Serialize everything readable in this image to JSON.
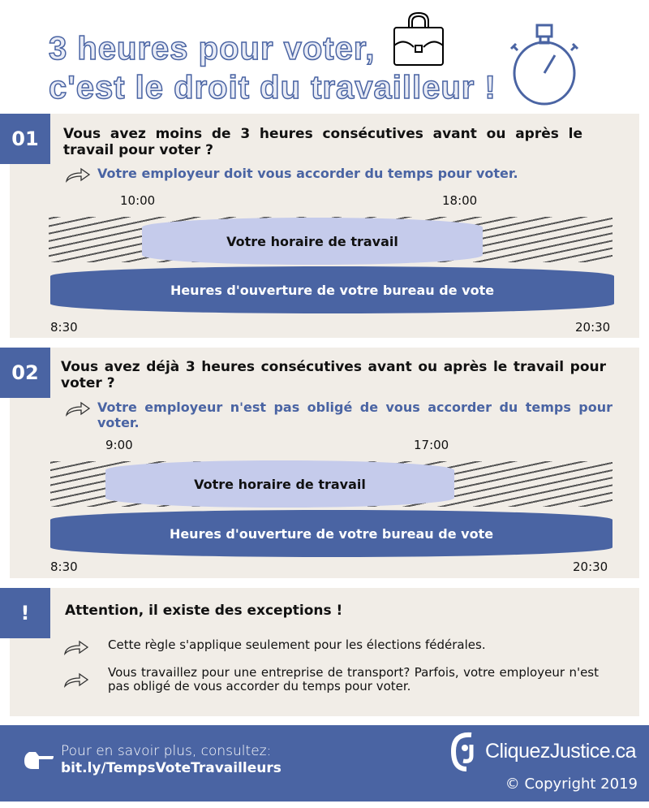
{
  "title": {
    "line1": "3 heures pour voter,",
    "line2": "c'est le droit du travailleur !"
  },
  "icons": {
    "briefcase": "briefcase-icon",
    "stopwatch": "stopwatch-icon",
    "arrow": "curved-arrow-icon",
    "hand": "pointing-hand-icon"
  },
  "colors": {
    "blue": "#4a64a3",
    "beige": "#f1ede7",
    "lavender": "#c5cbeb"
  },
  "sections": [
    {
      "number": "01",
      "question": "Vous avez moins de 3 heures consécutives avant ou après le travail pour voter ?",
      "answer": "Votre employeur doit vous accorder du temps pour voter.",
      "work_start": "10:00",
      "work_end": "18:00",
      "work_label": "Votre horaire de travail",
      "vote_label": "Heures d'ouverture de votre bureau de vote",
      "vote_start": "8:30",
      "vote_end": "20:30"
    },
    {
      "number": "02",
      "question": "Vous avez déjà 3 heures consécutives avant ou après le travail pour voter ?",
      "answer": "Votre employeur n'est pas obligé de vous accorder du temps pour voter.",
      "work_start": "9:00",
      "work_end": "17:00",
      "work_label": "Votre horaire de travail",
      "vote_label": "Heures d'ouverture de votre bureau de vote",
      "vote_start": "8:30",
      "vote_end": "20:30"
    }
  ],
  "exceptions": {
    "badge": "!",
    "heading": "Attention, il existe des exceptions !",
    "items": [
      "Cette règle s'applique seulement pour les élections fédérales.",
      "Vous travaillez pour une entreprise de transport? Parfois, votre employeur n'est pas obligé de vous accorder du temps pour voter."
    ]
  },
  "footer": {
    "more": "Pour en savoir plus, consultez:",
    "link": "bit.ly/TempsVoteTravailleurs",
    "logo": "CliquezJustice.ca",
    "copyright": "© Copyright 2019"
  }
}
